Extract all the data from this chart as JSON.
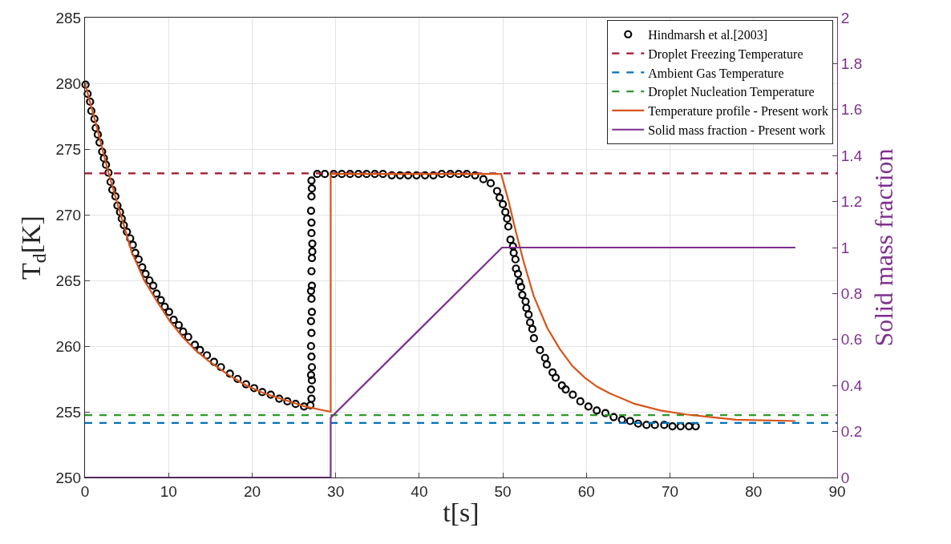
{
  "chart_data": {
    "type": "line",
    "xlabel": "t[s]",
    "ylabel": "T$_{d}$[K]",
    "y2label": "Solid mass fraction",
    "xlim": [
      0,
      90
    ],
    "xticks": [
      0,
      10,
      20,
      30,
      40,
      50,
      60,
      70,
      80,
      90
    ],
    "ylim": [
      250,
      285
    ],
    "yticks": [
      250,
      255,
      260,
      265,
      270,
      275,
      280,
      285
    ],
    "y2lim": [
      0,
      2
    ],
    "y2ticks": [
      0,
      0.2,
      0.4,
      0.6,
      0.8,
      1,
      1.2,
      1.4,
      1.6,
      1.8,
      2
    ],
    "grid": true,
    "legend": "top right",
    "series": [
      {
        "name": "Hindmarsh et al.[2003]",
        "type": "scatter",
        "marker": "circle",
        "color": "#000000",
        "x": [
          0.06,
          0.31,
          0.61,
          0.76,
          1.13,
          1.28,
          1.53,
          1.74,
          2.05,
          2.26,
          2.51,
          2.81,
          3.06,
          3.27,
          3.64,
          3.88,
          4.19,
          4.4,
          4.65,
          5.02,
          5.41,
          5.72,
          6.02,
          6.42,
          6.85,
          7.25,
          7.71,
          8.17,
          8.56,
          9.08,
          9.54,
          10.06,
          10.61,
          11.22,
          11.74,
          12.35,
          13.15,
          13.76,
          14.59,
          15.44,
          16.27,
          17.34,
          18.26,
          19.27,
          20.24,
          21.22,
          22.23,
          23.24,
          24.22,
          25.2,
          26.21,
          26.97,
          27.1,
          27.05,
          27.15,
          27.05,
          27.15,
          27.1,
          27.05,
          27.1,
          27.05,
          27.15,
          27.1,
          27.05,
          27.15,
          27.1,
          27.15,
          27.2,
          27.2,
          27.1,
          27.1,
          27.05,
          27.1,
          27.15,
          27.1,
          27.79,
          28.7,
          29.76,
          30.73,
          31.72,
          32.72,
          33.69,
          34.68,
          35.65,
          36.71,
          37.7,
          38.67,
          39.67,
          40.69,
          41.69,
          42.69,
          43.72,
          44.71,
          45.68,
          46.68,
          47.67,
          48.55,
          49.31,
          49.61,
          50.0,
          50.3,
          50.51,
          50.66,
          50.91,
          51.21,
          51.3,
          51.51,
          51.57,
          51.81,
          51.96,
          52.18,
          52.33,
          52.72,
          52.81,
          53.08,
          53.26,
          53.53,
          53.72,
          54.44,
          55.05,
          55.26,
          55.95,
          56.32,
          57.07,
          57.52,
          58.37,
          59.27,
          60.24,
          61.24,
          62.27,
          63.26,
          64.26,
          65.23,
          66.19,
          67.19,
          68.19,
          69.31,
          70.3,
          71.27,
          72.27,
          73.08
        ],
        "values": [
          279.9,
          279.2,
          278.6,
          277.9,
          277.3,
          276.6,
          276.1,
          275.5,
          274.8,
          274.3,
          273.8,
          273.2,
          272.5,
          271.9,
          271.4,
          270.7,
          270.2,
          269.7,
          269.2,
          268.7,
          268.2,
          267.7,
          267.1,
          266.6,
          266.0,
          265.5,
          265.0,
          264.6,
          264.0,
          263.5,
          263.0,
          262.6,
          262.0,
          261.6,
          261.1,
          260.7,
          260.1,
          259.7,
          259.3,
          258.8,
          258.4,
          257.9,
          257.5,
          257.1,
          256.8,
          256.5,
          256.3,
          256.0,
          255.8,
          255.6,
          255.4,
          255.5,
          256.0,
          256.7,
          257.4,
          257.8,
          258.4,
          259.2,
          260.0,
          261.0,
          261.9,
          262.6,
          263.6,
          264.2,
          264.6,
          265.7,
          266.7,
          267.2,
          267.8,
          268.6,
          269.4,
          270.3,
          271.4,
          272.0,
          272.6,
          273.1,
          273.1,
          273.1,
          273.1,
          273.1,
          273.1,
          273.1,
          273.1,
          273.1,
          273.0,
          273.0,
          273.0,
          273.0,
          273.0,
          273.0,
          273.1,
          273.1,
          273.1,
          273.1,
          273.0,
          272.7,
          272.4,
          271.8,
          271.3,
          270.8,
          270.2,
          269.7,
          269.1,
          268.1,
          267.6,
          267.1,
          266.6,
          265.9,
          265.5,
          264.9,
          264.5,
          263.9,
          263.4,
          262.9,
          262.4,
          261.8,
          261.3,
          260.6,
          259.7,
          259.1,
          258.6,
          258.0,
          257.6,
          257.0,
          256.7,
          256.3,
          255.8,
          255.4,
          255.1,
          254.9,
          254.6,
          254.4,
          254.3,
          254.1,
          254.0,
          254.0,
          254.0,
          253.9,
          253.9,
          253.9,
          253.9
        ]
      },
      {
        "name": "Temperature profile - Present work",
        "color": "#d95319",
        "x": [
          0,
          1.28,
          2.81,
          4.04,
          5.57,
          7.09,
          8.62,
          10.15,
          11.68,
          13.21,
          14.74,
          17.19,
          19.33,
          21.47,
          23.91,
          26.36,
          29.4,
          29.4,
          49.8,
          50.7,
          51.6,
          52.5,
          53.7,
          55.3,
          56.8,
          58.3,
          59.8,
          61.3,
          62.8,
          65.8,
          68.9,
          71.9,
          74.9,
          77.9,
          85.0
        ],
        "values": [
          280.0,
          277.0,
          273.2,
          270.5,
          267.2,
          265.0,
          263.4,
          261.9,
          260.7,
          259.7,
          258.9,
          257.8,
          257.0,
          256.4,
          255.9,
          255.4,
          255.0,
          273.1,
          273.1,
          271.0,
          268.6,
          266.4,
          263.8,
          261.4,
          259.8,
          258.5,
          257.6,
          256.9,
          256.4,
          255.6,
          255.1,
          254.8,
          254.6,
          254.4,
          254.3
        ]
      },
      {
        "name": "Solid mass fraction - Present work",
        "axis": "y2",
        "color": "#7e2f8e",
        "x": [
          0,
          29.4,
          29.4,
          49.9,
          85.0
        ],
        "values": [
          0,
          0,
          0.26,
          1.0,
          1.0
        ]
      }
    ],
    "ref_lines": [
      {
        "axis": "y",
        "value": 273.15,
        "label": "Droplet Freezing Temperature",
        "color": "#a2142f",
        "line_style": "dashed"
      },
      {
        "axis": "y",
        "value": 254.15,
        "label": "Ambient Gas Temperature",
        "color": "#0072bd",
        "line_style": "dashed"
      },
      {
        "axis": "y",
        "value": 254.75,
        "label": "Droplet Nucleation Temperature",
        "color": "#2a9a2a",
        "line_style": "dashed"
      }
    ]
  }
}
